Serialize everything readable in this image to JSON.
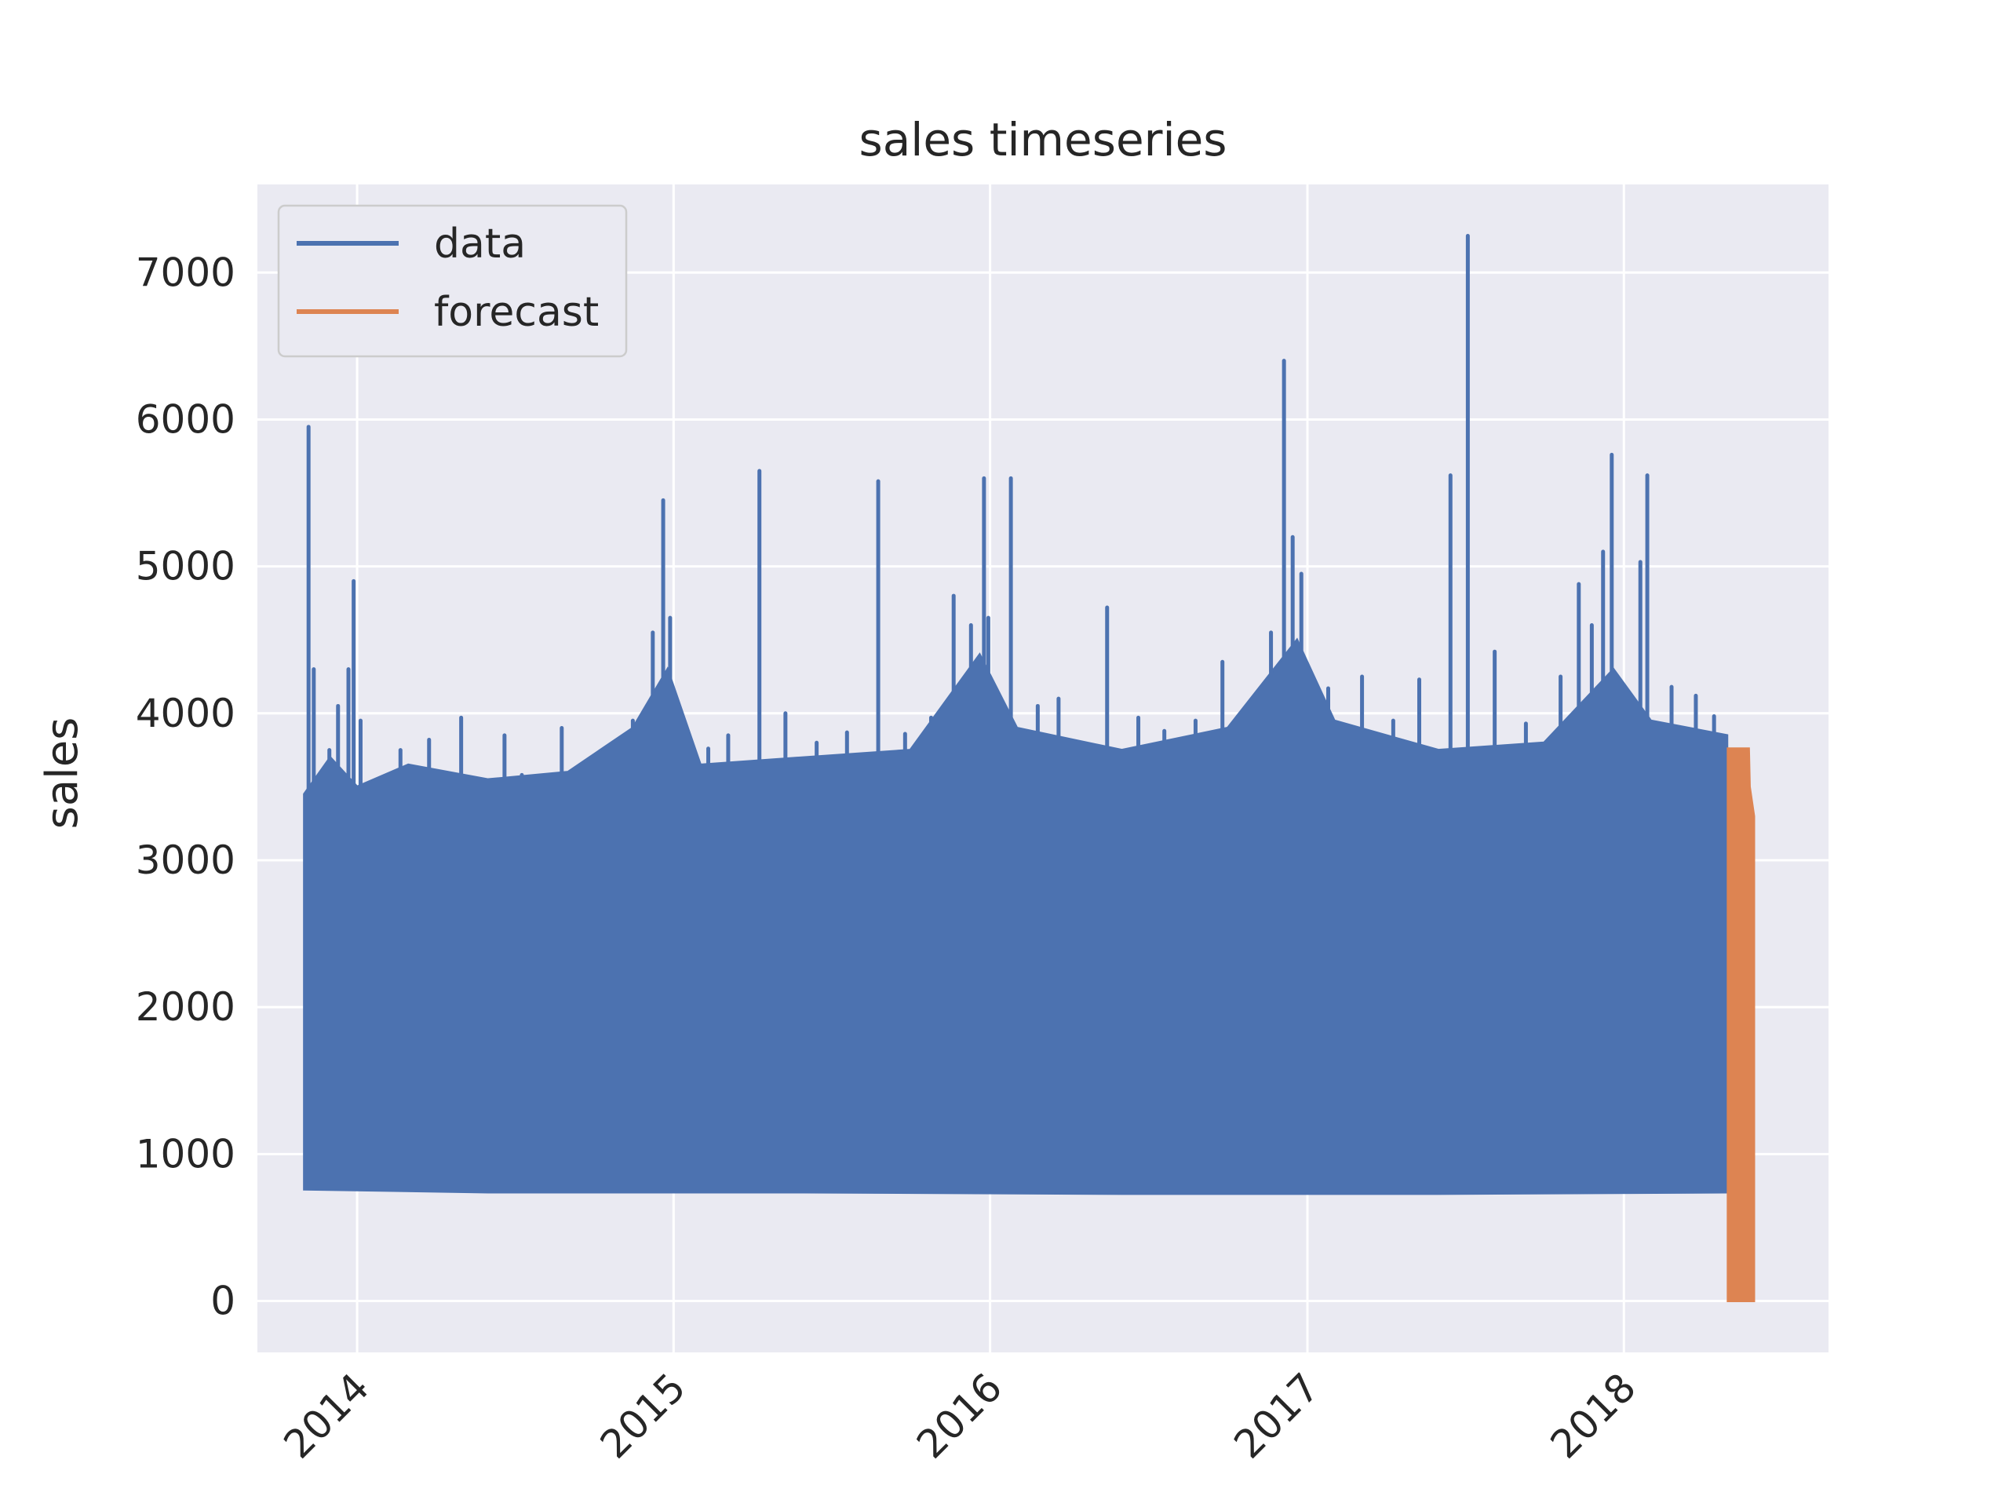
{
  "chart_data": {
    "type": "line",
    "title": "sales timeseries",
    "xlabel": "",
    "ylabel": "sales",
    "x_ticks": [
      "2014",
      "2015",
      "2016",
      "2017",
      "2018"
    ],
    "y_ticks": [
      "0",
      "1000",
      "2000",
      "3000",
      "4000",
      "5000",
      "6000",
      "7000"
    ],
    "xlim": [
      "2013-09-08",
      "2018-08-25"
    ],
    "ylim": [
      -350,
      7600
    ],
    "grid": true,
    "legend_position": "top-left",
    "colors": {
      "background": "#eaeaf2",
      "grid": "#ffffff",
      "data": "#4c72b0",
      "forecast": "#dd8452",
      "text": "#262626"
    },
    "series": [
      {
        "name": "data",
        "band": {
          "start": "2013-11-01",
          "end": "2018-04-30",
          "upper": [
            [
              "2013-11-01",
              3450
            ],
            [
              "2013-12-01",
              3700
            ],
            [
              "2014-01-01",
              3500
            ],
            [
              "2014-03-01",
              3650
            ],
            [
              "2014-06-01",
              3550
            ],
            [
              "2014-09-01",
              3600
            ],
            [
              "2014-11-15",
              3900
            ],
            [
              "2014-12-25",
              4300
            ],
            [
              "2015-02-01",
              3650
            ],
            [
              "2015-06-01",
              3700
            ],
            [
              "2015-10-01",
              3750
            ],
            [
              "2015-12-20",
              4400
            ],
            [
              "2016-02-01",
              3900
            ],
            [
              "2016-06-01",
              3750
            ],
            [
              "2016-10-01",
              3900
            ],
            [
              "2016-12-20",
              4500
            ],
            [
              "2017-02-01",
              3950
            ],
            [
              "2017-06-01",
              3750
            ],
            [
              "2017-10-01",
              3800
            ],
            [
              "2017-12-20",
              4300
            ],
            [
              "2018-02-01",
              3950
            ],
            [
              "2018-04-30",
              3850
            ]
          ],
          "lower": [
            [
              "2013-11-01",
              760
            ],
            [
              "2014-06-01",
              740
            ],
            [
              "2015-06-01",
              740
            ],
            [
              "2016-06-01",
              730
            ],
            [
              "2017-06-01",
              730
            ],
            [
              "2018-04-30",
              740
            ]
          ]
        },
        "spikes": [
          [
            "2013-11-06",
            5950
          ],
          [
            "2013-11-12",
            4300
          ],
          [
            "2013-11-30",
            3750
          ],
          [
            "2013-12-10",
            4050
          ],
          [
            "2013-12-22",
            4300
          ],
          [
            "2013-12-28",
            4900
          ],
          [
            "2014-01-05",
            3950
          ],
          [
            "2014-02-20",
            3750
          ],
          [
            "2014-03-25",
            3820
          ],
          [
            "2014-05-01",
            3970
          ],
          [
            "2014-06-20",
            3850
          ],
          [
            "2014-07-10",
            3580
          ],
          [
            "2014-08-25",
            3900
          ],
          [
            "2014-10-20",
            3650
          ],
          [
            "2014-11-15",
            3950
          ],
          [
            "2014-12-08",
            4550
          ],
          [
            "2014-12-20",
            5450
          ],
          [
            "2014-12-28",
            4650
          ],
          [
            "2015-02-10",
            3760
          ],
          [
            "2015-03-05",
            3850
          ],
          [
            "2015-04-10",
            5650
          ],
          [
            "2015-05-10",
            4000
          ],
          [
            "2015-06-15",
            3800
          ],
          [
            "2015-07-20",
            3870
          ],
          [
            "2015-08-25",
            5580
          ],
          [
            "2015-09-25",
            3860
          ],
          [
            "2015-10-25",
            3970
          ],
          [
            "2015-11-20",
            4800
          ],
          [
            "2015-12-10",
            4600
          ],
          [
            "2015-12-25",
            5600
          ],
          [
            "2015-12-30",
            4650
          ],
          [
            "2016-01-25",
            5600
          ],
          [
            "2016-02-25",
            4050
          ],
          [
            "2016-03-20",
            4100
          ],
          [
            "2016-04-25",
            3780
          ],
          [
            "2016-05-15",
            4720
          ],
          [
            "2016-06-20",
            3970
          ],
          [
            "2016-07-20",
            3880
          ],
          [
            "2016-08-25",
            3950
          ],
          [
            "2016-09-25",
            4350
          ],
          [
            "2016-10-25",
            4060
          ],
          [
            "2016-11-20",
            4550
          ],
          [
            "2016-12-05",
            6400
          ],
          [
            "2016-12-15",
            5200
          ],
          [
            "2016-12-25",
            4950
          ],
          [
            "2017-01-25",
            4170
          ],
          [
            "2017-03-05",
            4250
          ],
          [
            "2017-04-10",
            3950
          ],
          [
            "2017-05-10",
            4230
          ],
          [
            "2017-06-15",
            5620
          ],
          [
            "2017-07-05",
            7250
          ],
          [
            "2017-08-05",
            4420
          ],
          [
            "2017-09-10",
            3930
          ],
          [
            "2017-10-20",
            4250
          ],
          [
            "2017-11-10",
            4880
          ],
          [
            "2017-11-25",
            4600
          ],
          [
            "2017-12-08",
            5100
          ],
          [
            "2017-12-18",
            5760
          ],
          [
            "2018-01-05",
            4100
          ],
          [
            "2018-01-20",
            5030
          ],
          [
            "2018-01-28",
            5620
          ],
          [
            "2018-02-25",
            4180
          ],
          [
            "2018-03-25",
            4120
          ],
          [
            "2018-04-15",
            3980
          ]
        ]
      },
      {
        "name": "forecast",
        "band": {
          "start": "2018-05-01",
          "end": "2018-05-31",
          "upper": [
            [
              "2018-05-01",
              3760
            ],
            [
              "2018-05-25",
              3760
            ],
            [
              "2018-05-26",
              3500
            ],
            [
              "2018-05-31",
              3300
            ]
          ],
          "lower": [
            [
              "2018-05-01",
              0
            ],
            [
              "2018-05-31",
              0
            ]
          ]
        }
      }
    ]
  }
}
